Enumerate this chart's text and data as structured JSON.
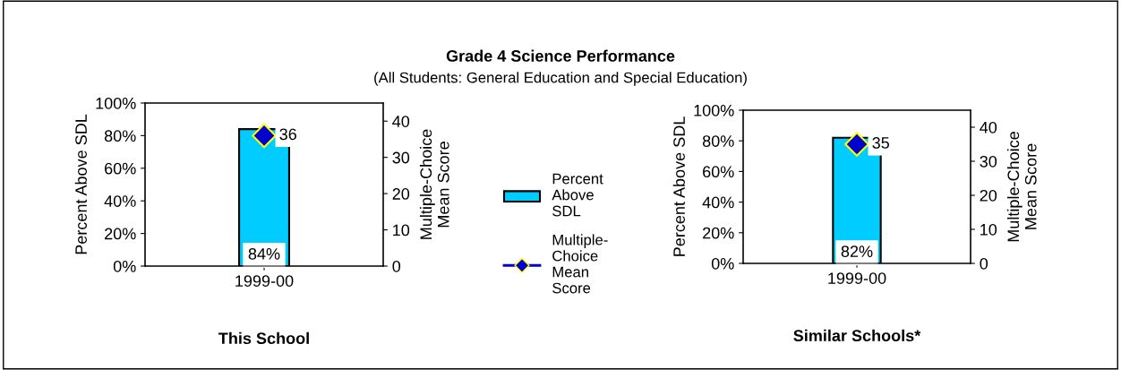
{
  "chart_data": [
    {
      "type": "other",
      "title": "Grade 4 Science Performance",
      "subtitle": "(All Students: General Education and Special Education)"
    },
    {
      "type": "bar",
      "xlabel": "This School",
      "ylabel": "Percent Above SDL",
      "y2label": "Multiple-Choice\nMean Score",
      "categories": [
        "1999-00"
      ],
      "series": [
        {
          "type": "bar",
          "name": "Percent Above SDL",
          "color": "#00ccff",
          "values": [
            84
          ],
          "value_labels": [
            "84%"
          ]
        },
        {
          "type": "line",
          "axis": "y2",
          "name": "Multiple-Choice Mean Score",
          "color": "#0000cc",
          "values": [
            36
          ],
          "value_labels": [
            "36"
          ]
        }
      ],
      "marker": "diamond",
      "ylim": [
        0,
        100
      ],
      "yticks": [
        {
          "value": 0,
          "label": "0%"
        },
        {
          "value": 20,
          "label": "20%"
        },
        {
          "value": 40,
          "label": "40%"
        },
        {
          "value": 60,
          "label": "60%"
        },
        {
          "value": 80,
          "label": "80%"
        },
        {
          "value": 100,
          "label": "100%"
        }
      ],
      "y2lim": [
        0,
        45
      ],
      "y2ticks": [
        0,
        10,
        20,
        30,
        40
      ],
      "legend": "right",
      "grid": false
    },
    {
      "type": "bar",
      "xlabel": "Similar Schools*",
      "ylabel": "Percent Above SDL",
      "y2label": "Multiple-Choice\nMean Score",
      "categories": [
        "1999-00"
      ],
      "series": [
        {
          "type": "bar",
          "color": "#00ccff",
          "values": [
            82
          ],
          "value_labels": [
            "82%"
          ]
        },
        {
          "type": "line",
          "axis": "y2",
          "color": "#0000cc",
          "values": [
            35
          ],
          "value_labels": [
            "35"
          ]
        }
      ],
      "marker": "diamond",
      "ylim": [
        0,
        100
      ],
      "yticks": [
        {
          "value": 0,
          "label": "0%"
        },
        {
          "value": 20,
          "label": "20%"
        },
        {
          "value": 40,
          "label": "40%"
        },
        {
          "value": 60,
          "label": "60%"
        },
        {
          "value": 80,
          "label": "80%"
        },
        {
          "value": 100,
          "label": "100%"
        }
      ],
      "y2lim": [
        0,
        45
      ],
      "y2ticks": [
        0,
        10,
        20,
        30,
        40
      ],
      "grid": false
    }
  ]
}
